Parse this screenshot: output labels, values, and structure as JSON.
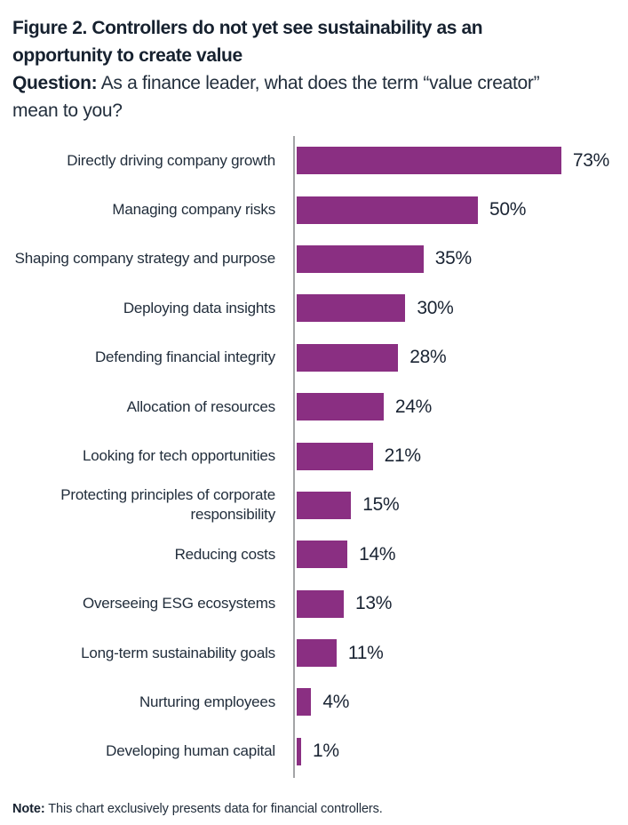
{
  "header": {
    "title_lines": [
      "Figure 2. Controllers do not yet see sustainability as an",
      "opportunity to create value"
    ],
    "question_label": "Question:",
    "question_lines": [
      "As a finance leader, what does the term “value creator”",
      "mean to you?"
    ]
  },
  "chart_data": {
    "type": "bar",
    "orientation": "horizontal",
    "title": "Figure 2. Controllers do not yet see sustainability as an opportunity to create value",
    "categories": [
      "Directly driving company growth",
      "Managing company risks",
      "Shaping company strategy and purpose",
      "Deploying data insights",
      "Defending financial integrity",
      "Allocation of resources",
      "Looking for tech opportunities",
      "Protecting principles of corporate responsibility",
      "Reducing costs",
      "Overseeing ESG ecosystems",
      "Long-term sustainability goals",
      "Nurturing employees",
      "Developing human capital"
    ],
    "values": [
      73,
      50,
      35,
      30,
      28,
      24,
      21,
      15,
      14,
      13,
      11,
      4,
      1
    ],
    "value_suffix": "%",
    "xlim": [
      0,
      100
    ],
    "grid": false,
    "legend": false,
    "data_labels": true,
    "bar_color": "#8a2f82",
    "axis_color": "#a3a4a6",
    "text_color": "#1a2433"
  },
  "footer": {
    "note_label": "Note:",
    "note_text": "This chart exclusively presents data for financial controllers."
  }
}
